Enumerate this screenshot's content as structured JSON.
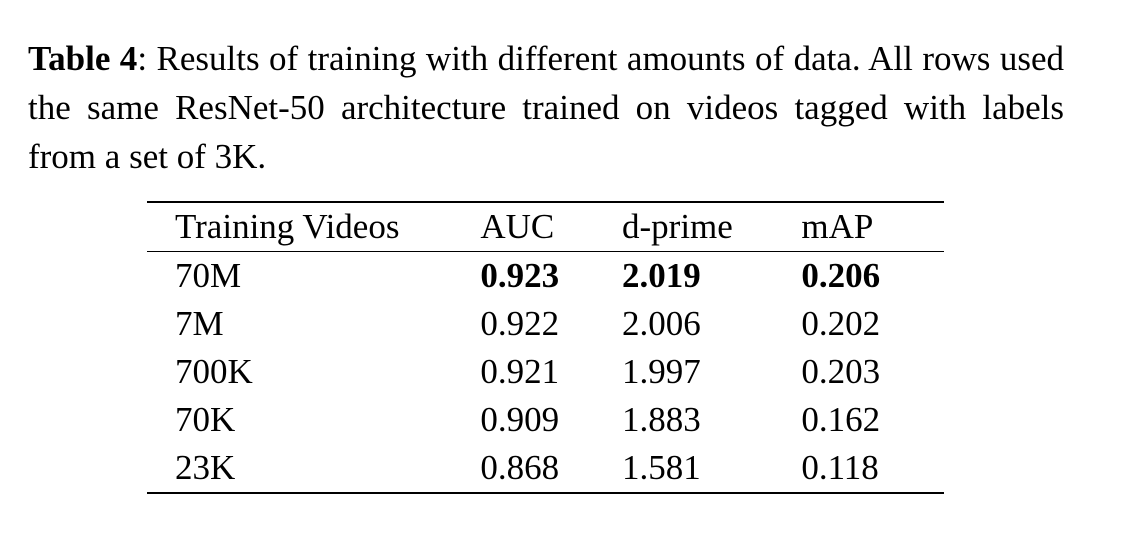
{
  "caption": {
    "label": "Table 4",
    "text": ": Results of training with different amounts of data. All rows used the same ResNet-50 architecture trained on videos tagged with labels from a set of 3K."
  },
  "table": {
    "headers": [
      "Training Videos",
      "AUC",
      "d-prime",
      "mAP"
    ],
    "rows": [
      {
        "training_videos": "70M",
        "auc": "0.923",
        "dprime": "2.019",
        "map": "0.206",
        "best": true
      },
      {
        "training_videos": "7M",
        "auc": "0.922",
        "dprime": "2.006",
        "map": "0.202",
        "best": false
      },
      {
        "training_videos": "700K",
        "auc": "0.921",
        "dprime": "1.997",
        "map": "0.203",
        "best": false
      },
      {
        "training_videos": "70K",
        "auc": "0.909",
        "dprime": "1.883",
        "map": "0.162",
        "best": false
      },
      {
        "training_videos": "23K",
        "auc": "0.868",
        "dprime": "1.581",
        "map": "0.118",
        "best": false
      }
    ]
  }
}
